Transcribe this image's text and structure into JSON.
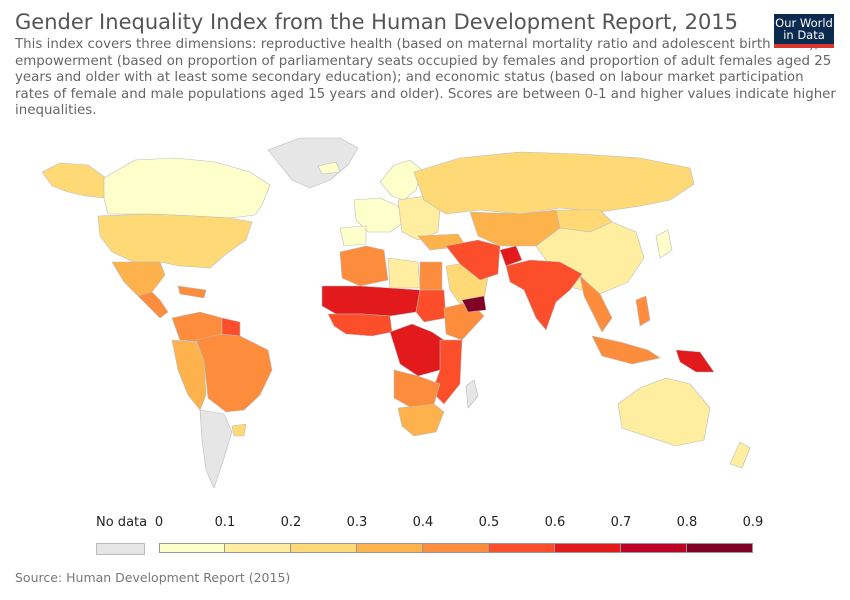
{
  "header": {
    "title": "Gender Inequality Index from the Human Development Report, 2015",
    "subtitle": "This index covers three dimensions: reproductive health (based on maternal mortality ratio and adolescent birth rates); empowerment (based on proportion of parliamentary seats occupied by females and proportion of adult females aged 25 years and older with at least some secondary education); and economic status (based on labour market participation rates of female and male populations aged 15 years and older). Scores are between 0-1 and higher values indicate higher inequalities.",
    "logo_line1": "Our World",
    "logo_line2": "in Data"
  },
  "legend": {
    "no_data_label": "No data",
    "no_data_color": "#e6e6e6",
    "ticks": [
      "0",
      "0.1",
      "0.2",
      "0.3",
      "0.4",
      "0.5",
      "0.6",
      "0.7",
      "0.8",
      "0.9"
    ],
    "bin_colors": [
      "#ffffcc",
      "#ffeda0",
      "#fed976",
      "#feb24c",
      "#fd8d3c",
      "#fc4e2a",
      "#e31a1c",
      "#bd0026",
      "#800026"
    ]
  },
  "footer": {
    "source": "Source: Human Development Report (2015)"
  },
  "map_regions": [
    {
      "name": "greenland",
      "bin": "none"
    },
    {
      "name": "canada",
      "bin": 0
    },
    {
      "name": "alaska",
      "bin": 2
    },
    {
      "name": "united-states",
      "bin": 2
    },
    {
      "name": "mexico",
      "bin": 3
    },
    {
      "name": "central-america",
      "bin": 4
    },
    {
      "name": "caribbean",
      "bin": 4
    },
    {
      "name": "colombia-venezuela",
      "bin": 4
    },
    {
      "name": "guyanas",
      "bin": 5
    },
    {
      "name": "andes",
      "bin": 3
    },
    {
      "name": "brazil",
      "bin": 4
    },
    {
      "name": "southern-cone",
      "bin": "none"
    },
    {
      "name": "uruguay",
      "bin": 2
    },
    {
      "name": "iceland",
      "bin": 0
    },
    {
      "name": "scandinavia",
      "bin": 0
    },
    {
      "name": "western-europe",
      "bin": 0
    },
    {
      "name": "iberia",
      "bin": 0
    },
    {
      "name": "eastern-europe",
      "bin": 1
    },
    {
      "name": "russia",
      "bin": 2
    },
    {
      "name": "turkey",
      "bin": 3
    },
    {
      "name": "north-africa-west",
      "bin": 4
    },
    {
      "name": "libya",
      "bin": 1
    },
    {
      "name": "egypt",
      "bin": 4
    },
    {
      "name": "sahel",
      "bin": 6
    },
    {
      "name": "west-africa-coast",
      "bin": 5
    },
    {
      "name": "sudan",
      "bin": 5
    },
    {
      "name": "horn-of-africa",
      "bin": 4
    },
    {
      "name": "central-africa",
      "bin": 6
    },
    {
      "name": "east-africa",
      "bin": 5
    },
    {
      "name": "angola-zambia",
      "bin": 4
    },
    {
      "name": "southern-africa",
      "bin": 3
    },
    {
      "name": "madagascar",
      "bin": "none"
    },
    {
      "name": "saudi-arabia",
      "bin": 2
    },
    {
      "name": "yemen",
      "bin": 8
    },
    {
      "name": "iran-iraq",
      "bin": 5
    },
    {
      "name": "afghanistan",
      "bin": 6
    },
    {
      "name": "central-asia",
      "bin": 3
    },
    {
      "name": "south-asia",
      "bin": 5
    },
    {
      "name": "china",
      "bin": 1
    },
    {
      "name": "mongolia",
      "bin": 2
    },
    {
      "name": "southeast-asia",
      "bin": 4
    },
    {
      "name": "indonesia",
      "bin": 4
    },
    {
      "name": "philippines",
      "bin": 4
    },
    {
      "name": "papua-new-guinea",
      "bin": 6
    },
    {
      "name": "japan",
      "bin": 0
    },
    {
      "name": "australia",
      "bin": 1
    },
    {
      "name": "new-zealand",
      "bin": 1
    }
  ]
}
